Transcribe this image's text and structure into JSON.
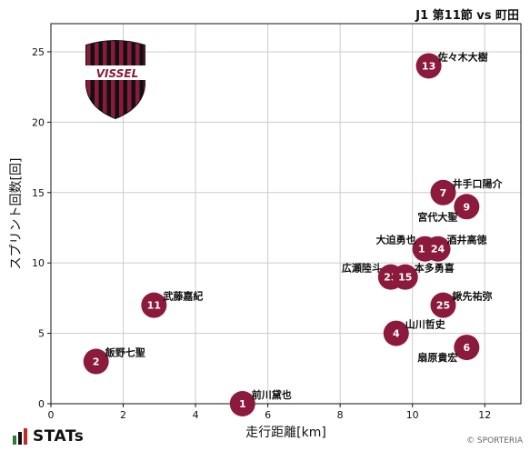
{
  "header": {
    "title": "J1 第11節 vs 町田"
  },
  "footer": {
    "brand": "STATs",
    "copyright": "© SPORTERIA"
  },
  "logo": {
    "text": "VISSEL"
  },
  "colors": {
    "marker": "#8b1a3c",
    "grid": "#cccccc"
  },
  "chart_data": {
    "type": "scatter",
    "xlabel": "走行距離[km]",
    "ylabel": "スプリント回数[回]",
    "xlim": [
      0,
      13
    ],
    "ylim": [
      0,
      27
    ],
    "xticks": [
      0,
      2,
      4,
      6,
      8,
      10,
      12
    ],
    "yticks": [
      0,
      5,
      10,
      15,
      20,
      25
    ],
    "grid": true,
    "points": [
      {
        "num": "1",
        "name": "前川黛也",
        "x": 5.3,
        "y": 0,
        "label_pos": "right-up"
      },
      {
        "num": "2",
        "name": "飯野七聖",
        "x": 1.25,
        "y": 3,
        "label_pos": "right-up"
      },
      {
        "num": "11",
        "name": "武藤嘉紀",
        "x": 2.85,
        "y": 7,
        "label_pos": "right-up"
      },
      {
        "num": "13",
        "name": "佐々木大樹",
        "x": 10.45,
        "y": 24,
        "label_pos": "right-up"
      },
      {
        "num": "7",
        "name": "井手口陽介",
        "x": 10.85,
        "y": 15,
        "label_pos": "right-up"
      },
      {
        "num": "9",
        "name": "宮代大聖",
        "x": 11.5,
        "y": 14,
        "label_pos": "left-down"
      },
      {
        "num": "10",
        "name": "大迫勇也",
        "x": 10.35,
        "y": 11,
        "label_pos": "left-up"
      },
      {
        "num": "24",
        "name": "酒井高徳",
        "x": 10.7,
        "y": 11,
        "label_pos": "right-up"
      },
      {
        "num": "23",
        "name": "広瀬陸斗",
        "x": 9.4,
        "y": 9,
        "label_pos": "left-up"
      },
      {
        "num": "15",
        "name": "本多勇喜",
        "x": 9.8,
        "y": 9,
        "label_pos": "right-up"
      },
      {
        "num": "25",
        "name": "鍬先祐弥",
        "x": 10.85,
        "y": 7,
        "label_pos": "right-up"
      },
      {
        "num": "4",
        "name": "山川哲史",
        "x": 9.55,
        "y": 5,
        "label_pos": "right-up"
      },
      {
        "num": "6",
        "name": "扇原貴宏",
        "x": 11.5,
        "y": 4,
        "label_pos": "left-down"
      }
    ]
  }
}
